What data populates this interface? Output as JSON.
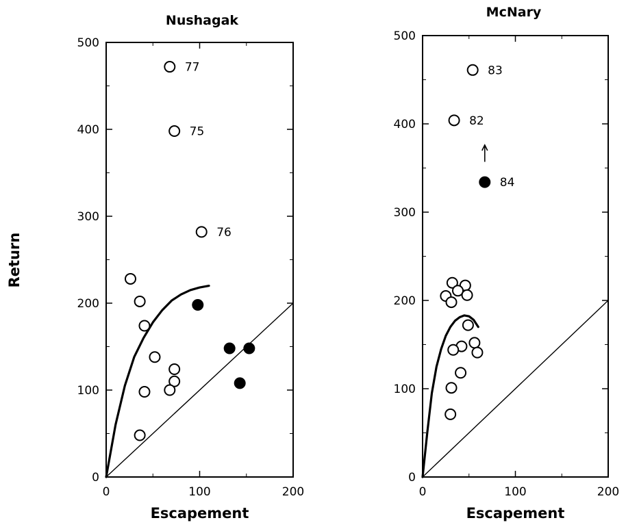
{
  "chart_data": [
    {
      "type": "scatter",
      "title": "Nushagak",
      "xlabel": "Escapement",
      "ylabel": "Return",
      "xlim": [
        0,
        200
      ],
      "ylim": [
        0,
        500
      ],
      "xticks": [
        "0",
        "100",
        "200"
      ],
      "yticks": [
        "0",
        "100",
        "200",
        "300",
        "400",
        "500"
      ],
      "series": [
        {
          "marker": "open-circle",
          "points": [
            {
              "x": 68,
              "y": 472,
              "label": "77"
            },
            {
              "x": 73,
              "y": 398,
              "label": "75"
            },
            {
              "x": 102,
              "y": 282,
              "label": "76"
            },
            {
              "x": 26,
              "y": 228,
              "label": ""
            },
            {
              "x": 36,
              "y": 202,
              "label": ""
            },
            {
              "x": 41,
              "y": 174,
              "label": ""
            },
            {
              "x": 52,
              "y": 138,
              "label": ""
            },
            {
              "x": 73,
              "y": 124,
              "label": ""
            },
            {
              "x": 73,
              "y": 110,
              "label": ""
            },
            {
              "x": 68,
              "y": 100,
              "label": ""
            },
            {
              "x": 41,
              "y": 98,
              "label": ""
            },
            {
              "x": 36,
              "y": 48,
              "label": ""
            }
          ]
        },
        {
          "marker": "filled-circle",
          "points": [
            {
              "x": 98,
              "y": 198,
              "label": ""
            },
            {
              "x": 132,
              "y": 148,
              "label": ""
            },
            {
              "x": 153,
              "y": 148,
              "label": ""
            },
            {
              "x": 143,
              "y": 108,
              "label": ""
            }
          ]
        }
      ],
      "curve": [
        [
          0,
          0
        ],
        [
          10,
          60
        ],
        [
          20,
          105
        ],
        [
          30,
          138
        ],
        [
          40,
          160
        ],
        [
          50,
          178
        ],
        [
          60,
          192
        ],
        [
          70,
          203
        ],
        [
          80,
          210
        ],
        [
          90,
          215
        ],
        [
          100,
          218
        ],
        [
          110,
          220
        ]
      ],
      "replacement_line": [
        [
          0,
          0
        ],
        [
          200,
          200
        ]
      ]
    },
    {
      "type": "scatter",
      "title": "McNary",
      "xlabel": "Escapement",
      "ylabel": "",
      "xlim": [
        0,
        200
      ],
      "ylim": [
        0,
        500
      ],
      "xticks": [
        "0",
        "100",
        "200"
      ],
      "yticks": [
        "0",
        "100",
        "200",
        "300",
        "400",
        "500"
      ],
      "series": [
        {
          "marker": "open-circle",
          "points": [
            {
              "x": 54,
              "y": 461,
              "label": "83"
            },
            {
              "x": 34,
              "y": 404,
              "label": "82"
            },
            {
              "x": 32,
              "y": 220,
              "label": ""
            },
            {
              "x": 46,
              "y": 217,
              "label": ""
            },
            {
              "x": 38,
              "y": 211,
              "label": ""
            },
            {
              "x": 25,
              "y": 205,
              "label": ""
            },
            {
              "x": 48,
              "y": 206,
              "label": ""
            },
            {
              "x": 31,
              "y": 198,
              "label": ""
            },
            {
              "x": 49,
              "y": 172,
              "label": ""
            },
            {
              "x": 56,
              "y": 152,
              "label": ""
            },
            {
              "x": 42,
              "y": 148,
              "label": ""
            },
            {
              "x": 33,
              "y": 144,
              "label": ""
            },
            {
              "x": 59,
              "y": 141,
              "label": ""
            },
            {
              "x": 41,
              "y": 118,
              "label": ""
            },
            {
              "x": 31,
              "y": 101,
              "label": ""
            },
            {
              "x": 30,
              "y": 71,
              "label": ""
            }
          ]
        },
        {
          "marker": "filled-circle",
          "points": [
            {
              "x": 67,
              "y": 334,
              "label": "84"
            }
          ]
        }
      ],
      "arrow": {
        "x": 67,
        "y_from": 357,
        "y_to": 376
      },
      "curve": [
        [
          0,
          0
        ],
        [
          5,
          50
        ],
        [
          10,
          95
        ],
        [
          15,
          125
        ],
        [
          20,
          145
        ],
        [
          25,
          160
        ],
        [
          30,
          170
        ],
        [
          35,
          177
        ],
        [
          40,
          181
        ],
        [
          45,
          183
        ],
        [
          50,
          182
        ],
        [
          55,
          178
        ],
        [
          60,
          170
        ]
      ],
      "replacement_line": [
        [
          0,
          0
        ],
        [
          200,
          200
        ]
      ]
    }
  ]
}
